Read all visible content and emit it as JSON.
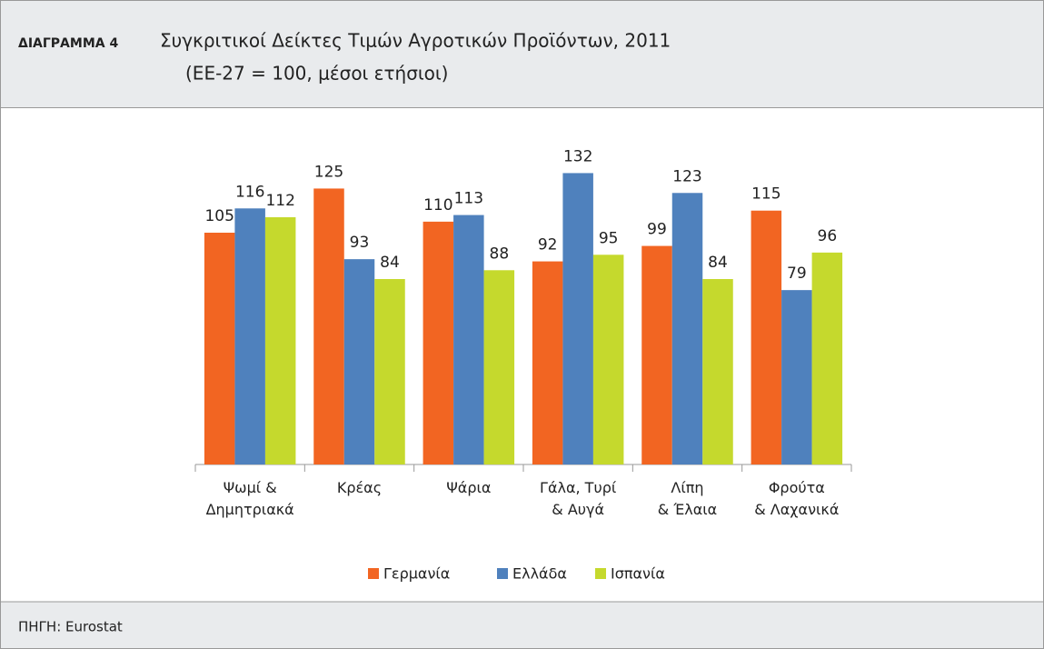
{
  "chart_data": {
    "type": "bar",
    "label": "ΔΙΑΓΡΑΜΜΑ 4",
    "title": "Συγκριτικοί Δείκτες Τιμών Αγροτικών Προϊόντων, 2011",
    "subtitle": "(ΕΕ-27 = 100, μέσοι ετήσιοι)",
    "source": "ΠΗΓΗ: Eurostat",
    "categories": [
      "Ψωμί &\nΔημητριακά",
      "Κρέας",
      "Ψάρια",
      "Γάλα, Τυρί\n& Αυγά",
      "Λίπη\n& Έλαια",
      "Φρούτα\n& Λαχανικά"
    ],
    "series": [
      {
        "name": "Γερμανία",
        "color": "#f26522",
        "values": [
          105,
          125,
          110,
          92,
          99,
          115
        ]
      },
      {
        "name": "Ελλάδα",
        "color": "#4f81bd",
        "values": [
          116,
          93,
          113,
          132,
          123,
          79
        ]
      },
      {
        "name": "Ισπανία",
        "color": "#c5d92d",
        "values": [
          112,
          84,
          88,
          95,
          84,
          96
        ]
      }
    ],
    "ylim": [
      0,
      140
    ]
  }
}
